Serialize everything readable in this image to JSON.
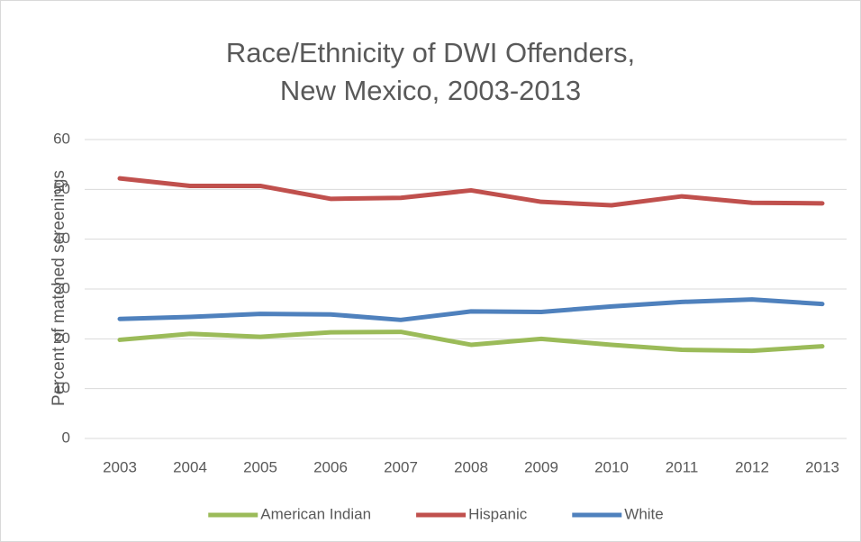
{
  "chart_data": {
    "type": "line",
    "title": "Race/Ethnicity of DWI Offenders, New Mexico, 2003-2013",
    "y_label": "Percent of matched screenings",
    "categories": [
      "2003",
      "2004",
      "2005",
      "2006",
      "2007",
      "2008",
      "2009",
      "2010",
      "2011",
      "2012",
      "2013"
    ],
    "series": [
      {
        "name": "American Indian",
        "color": "#9bbb59",
        "values": [
          19.8,
          21.0,
          20.4,
          21.3,
          21.4,
          18.8,
          20.0,
          18.8,
          17.8,
          17.6,
          18.5
        ]
      },
      {
        "name": "Hispanic",
        "color": "#c0504d",
        "values": [
          52.2,
          50.7,
          50.7,
          48.1,
          48.3,
          49.8,
          47.5,
          46.8,
          48.6,
          47.3,
          47.2
        ]
      },
      {
        "name": "White",
        "color": "#4f81bd",
        "values": [
          24.0,
          24.4,
          25.0,
          24.9,
          23.8,
          25.5,
          25.4,
          26.5,
          27.4,
          27.9,
          27.0
        ]
      }
    ],
    "ylim": [
      0,
      60
    ],
    "yticks": [
      0,
      10,
      20,
      30,
      40,
      50,
      60
    ],
    "grid": true,
    "legend": "bottom"
  }
}
